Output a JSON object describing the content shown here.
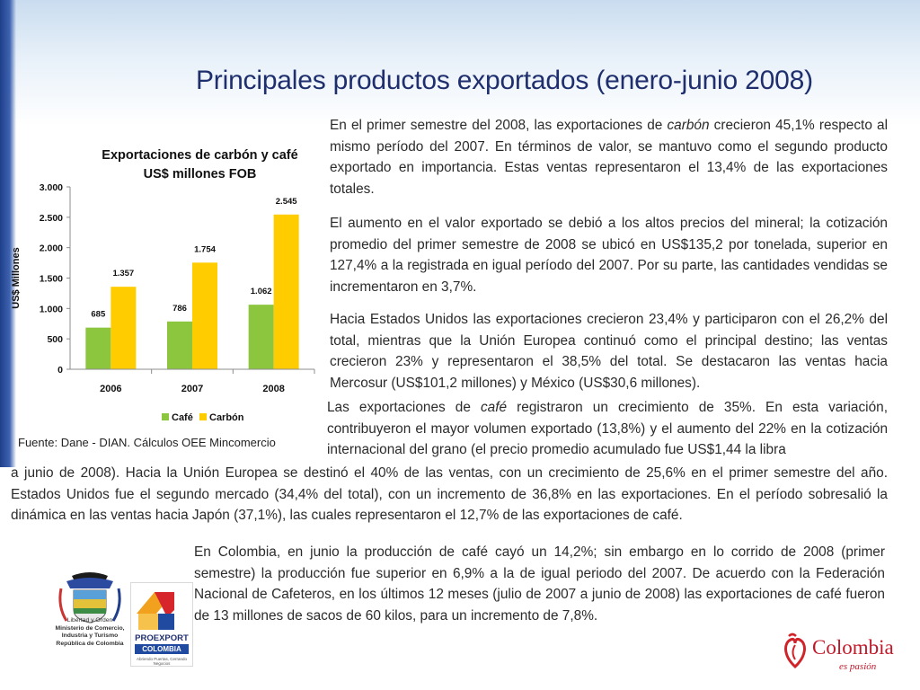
{
  "title": "Principales productos exportados (enero-junio 2008)",
  "paragraphs": {
    "p1_before": "En el primer semestre del 2008, las exportaciones de ",
    "p1_em": "carbón",
    "p1_after": " crecieron 45,1% respecto al mismo período del 2007. En términos de valor, se mantuvo como el segundo producto exportado en importancia. Estas ventas representaron el 13,4% de las exportaciones totales.",
    "p2": "El aumento en el valor exportado se debió a los altos precios del mineral; la cotización promedio del primer semestre de 2008 se ubicó en US$135,2 por tonelada, superior en 127,4% a la registrada en igual período del 2007. Por su parte, las cantidades vendidas se incrementaron en 3,7%.",
    "p3": "Hacia Estados Unidos las exportaciones crecieron 23,4% y participaron con el 26,2% del total, mientras que la Unión Europea continuó como el principal destino; las ventas crecieron 23% y representaron el 38,5% del total. Se destacaron las ventas hacia Mercosur (US$101,2 millones) y México (US$30,6 millones).",
    "p4_before": "Las exportaciones de ",
    "p4_em": "café",
    "p4_after": " registraron un crecimiento de 35%. En esta variación, contribuyeron el mayor volumen exportado (13,8%) y el aumento del 22% en la cotización internacional del grano (el precio promedio acumulado fue US$1,44 la libra",
    "p4_cont": "a junio de 2008). Hacia la Unión Europea se destinó el 40% de las ventas, con un crecimiento de 25,6% en el primer semestre del año. Estados Unidos fue el segundo mercado (34,4% del total), con un incremento de 36,8% en las exportaciones. En el período sobresalió la dinámica en las ventas hacia Japón (37,1%), las cuales representaron el 12,7% de las exportaciones de café.",
    "p5": "En Colombia, en junio la producción de café cayó un 14,2%; sin embargo en lo corrido de 2008 (primer semestre) la producción fue superior en 6,9% a la de igual periodo del 2007. De acuerdo con la Federación Nacional de Cafeteros, en los últimos 12 meses (julio de 2007 a junio de 2008) las exportaciones de café fueron de 13 millones de sacos de 60 kilos, para un incremento de 7,8%."
  },
  "source": "Fuente: Dane - DIAN. Cálculos OEE Mincomercio",
  "logos": {
    "ministry_lines": [
      "Libertad y Orden",
      "Ministerio de Comercio,",
      "Industria y Turismo",
      "República de Colombia"
    ],
    "proexport_name": "PROEXPORT",
    "proexport_country": "COLOMBIA",
    "proexport_tagline": "Abriendo Puertas, Cerrando Negocios",
    "brand_name": "Colombia",
    "brand_tagline": "es pasión"
  },
  "colors": {
    "title": "#1f2f6e",
    "cafe": "#8cc63f",
    "carbon": "#ffcc00"
  },
  "chart_data": {
    "type": "bar",
    "title": "Exportaciones de carbón y café US$ millones FOB",
    "title_lines": [
      "Exportaciones de carbón y café",
      "US$ millones FOB"
    ],
    "ylabel": "US$ Millones",
    "xlabel": "",
    "categories": [
      "2006",
      "2007",
      "2008"
    ],
    "ylim": [
      0,
      3000
    ],
    "yticks": [
      0,
      500,
      1000,
      1500,
      2000,
      2500,
      3000
    ],
    "ytick_labels": [
      "0",
      "500",
      "1.000",
      "1.500",
      "2.000",
      "2.500",
      "3.000"
    ],
    "series": [
      {
        "name": "Café",
        "values": [
          685,
          786,
          1062
        ],
        "labels": [
          "685",
          "786",
          "1.062"
        ],
        "color": "#8cc63f"
      },
      {
        "name": "Carbón",
        "values": [
          1357,
          1754,
          2545
        ],
        "labels": [
          "1.357",
          "1.754",
          "2.545"
        ],
        "color": "#ffcc00"
      }
    ],
    "legend": "bottom",
    "grid": false
  }
}
